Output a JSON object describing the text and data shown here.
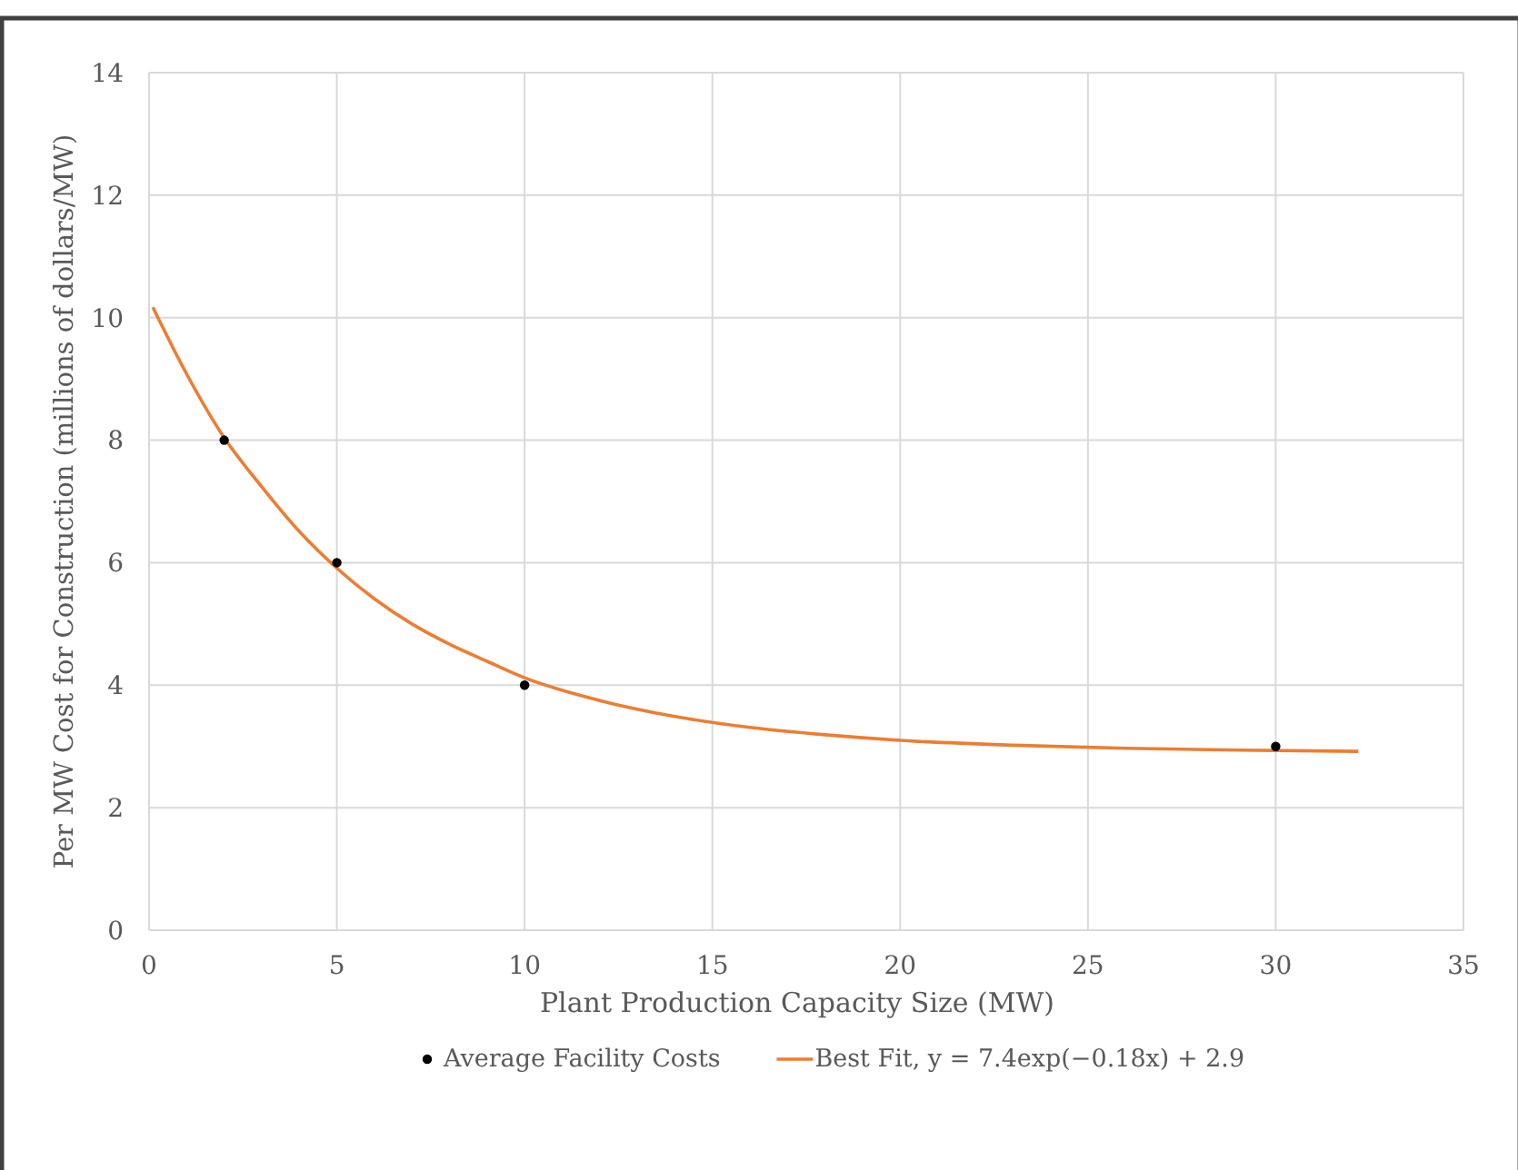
{
  "chart_data": {
    "type": "scatter",
    "xlabel": "Plant Production Capacity Size (MW)",
    "ylabel": "Per MW Cost for Construction (millions of dollars/MW)",
    "xlim": [
      0,
      35
    ],
    "xticks": [
      0,
      5,
      10,
      15,
      20,
      25,
      30,
      35
    ],
    "ylim": [
      0,
      14
    ],
    "yticks": [
      0,
      2,
      4,
      6,
      8,
      10,
      12,
      14
    ],
    "grid": true,
    "legend": "bottom",
    "marker": "circle",
    "series": [
      {
        "name": "Average Facility Costs",
        "color": "#000000",
        "x": [
          2,
          5,
          10,
          30
        ],
        "values": [
          8,
          6,
          4,
          3
        ]
      },
      {
        "name": "Best Fit, y = 7.4exp(−0.18x) + 2.9",
        "type": "line",
        "color": "#ed7d31",
        "marker": "none",
        "x": [
          0.1,
          1,
          2,
          3,
          4,
          5,
          6,
          7,
          8,
          9,
          10,
          12,
          14,
          16,
          18,
          20,
          23,
          26,
          29,
          32.2
        ],
        "values": [
          10.17,
          9.08,
          8.04,
          7.24,
          6.51,
          5.91,
          5.41,
          5.0,
          4.67,
          4.39,
          4.12,
          3.75,
          3.49,
          3.31,
          3.19,
          3.1,
          3.02,
          2.97,
          2.94,
          2.92
        ]
      }
    ]
  }
}
